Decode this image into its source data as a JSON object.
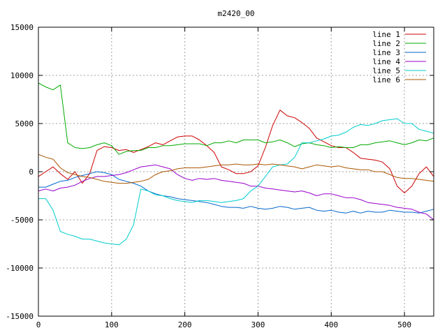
{
  "chart_data": {
    "type": "line",
    "title": "m2420_00",
    "xlabel": "",
    "ylabel": "",
    "xlim": [
      0,
      540
    ],
    "ylim": [
      -15000,
      15000
    ],
    "x_ticks": [
      0,
      100,
      200,
      300,
      400,
      500
    ],
    "y_ticks": [
      -15000,
      -10000,
      -5000,
      0,
      5000,
      10000,
      15000
    ],
    "grid": true,
    "legend_position": "top-right",
    "x": [
      0,
      10,
      20,
      30,
      40,
      50,
      60,
      70,
      80,
      90,
      100,
      110,
      120,
      130,
      140,
      150,
      160,
      170,
      180,
      190,
      200,
      210,
      220,
      230,
      240,
      250,
      260,
      270,
      280,
      290,
      300,
      310,
      320,
      330,
      340,
      350,
      360,
      370,
      380,
      390,
      400,
      410,
      420,
      430,
      440,
      450,
      460,
      470,
      480,
      490,
      500,
      510,
      520,
      530,
      540
    ],
    "series": [
      {
        "name": "line 1",
        "color": "#cc0000",
        "values": [
          -500,
          0,
          500,
          -200,
          -800,
          0,
          -1200,
          -200,
          2200,
          2600,
          2500,
          2200,
          2300,
          2000,
          2300,
          2600,
          3000,
          2800,
          3200,
          3600,
          3700,
          3700,
          3300,
          2700,
          2000,
          500,
          200,
          -200,
          -200,
          0,
          600,
          2500,
          4800,
          6400,
          5800,
          5600,
          5100,
          4500,
          3500,
          3100,
          2700,
          2500,
          2500,
          2000,
          1400,
          1300,
          1200,
          1000,
          300,
          -1500,
          -2200,
          -1500,
          -200,
          500,
          -500
        ]
      },
      {
        "name": "line 2",
        "color": "#00aa00",
        "values": [
          9200,
          8800,
          8500,
          9000,
          3000,
          2500,
          2400,
          2500,
          2800,
          3000,
          2700,
          1800,
          2100,
          2200,
          2200,
          2500,
          2500,
          2700,
          2700,
          2800,
          2900,
          2900,
          2900,
          2700,
          3000,
          3000,
          3200,
          3000,
          3300,
          3300,
          3300,
          3000,
          3100,
          3300,
          3000,
          2600,
          2900,
          3000,
          2800,
          2700,
          2500,
          2600,
          2500,
          2500,
          2800,
          2800,
          3000,
          3100,
          3200,
          3000,
          2800,
          3000,
          3300,
          3200,
          3500
        ]
      },
      {
        "name": "line 3",
        "color": "#0066cc",
        "values": [
          -1600,
          -1600,
          -1300,
          -1000,
          -900,
          -600,
          -400,
          -200,
          0,
          -100,
          -300,
          -800,
          -1000,
          -1200,
          -1500,
          -2000,
          -2300,
          -2500,
          -2600,
          -2800,
          -2900,
          -3000,
          -3100,
          -3200,
          -3400,
          -3600,
          -3700,
          -3700,
          -3800,
          -3600,
          -3800,
          -3900,
          -3800,
          -3600,
          -3700,
          -3900,
          -3800,
          -3700,
          -4000,
          -4100,
          -4000,
          -4200,
          -4300,
          -4100,
          -4300,
          -4100,
          -4200,
          -4200,
          -4000,
          -4100,
          -4200,
          -4200,
          -4300,
          -4100,
          -3900
        ]
      },
      {
        "name": "line 4",
        "color": "#9900cc",
        "values": [
          -2000,
          -1800,
          -2000,
          -1700,
          -1600,
          -1400,
          -1000,
          -700,
          -500,
          -500,
          -400,
          -300,
          -100,
          200,
          500,
          600,
          700,
          500,
          300,
          -300,
          -700,
          -900,
          -700,
          -800,
          -700,
          -900,
          -1000,
          -1100,
          -1200,
          -1500,
          -1500,
          -1700,
          -1800,
          -1900,
          -2000,
          -2100,
          -2000,
          -2200,
          -2500,
          -2300,
          -2300,
          -2500,
          -2700,
          -2700,
          -2900,
          -3200,
          -3300,
          -3400,
          -3500,
          -3700,
          -3800,
          -3900,
          -4200,
          -4400,
          -5000
        ]
      },
      {
        "name": "line 5",
        "color": "#00cccc",
        "values": [
          -2800,
          -2800,
          -4000,
          -6200,
          -6500,
          -6700,
          -7000,
          -7000,
          -7200,
          -7400,
          -7500,
          -7600,
          -7000,
          -5500,
          -1800,
          -2000,
          -2400,
          -2500,
          -2800,
          -3000,
          -3100,
          -3200,
          -3000,
          -3000,
          -3100,
          -3200,
          -3100,
          -3000,
          -2800,
          -2000,
          -1500,
          -500,
          500,
          700,
          800,
          1500,
          3000,
          3000,
          3200,
          3400,
          3700,
          3800,
          4100,
          4600,
          4900,
          4800,
          5000,
          5300,
          5400,
          5500,
          5000,
          5000,
          4400,
          4200,
          4000
        ]
      },
      {
        "name": "line 6",
        "color": "#aa5500",
        "values": [
          1800,
          1500,
          1300,
          400,
          -100,
          -300,
          -500,
          -600,
          -800,
          -1000,
          -1100,
          -1200,
          -1200,
          -1100,
          -1000,
          -800,
          -300,
          0,
          100,
          300,
          400,
          400,
          400,
          500,
          600,
          700,
          700,
          800,
          700,
          700,
          800,
          700,
          800,
          700,
          600,
          500,
          300,
          500,
          700,
          600,
          500,
          600,
          400,
          300,
          200,
          200,
          0,
          0,
          -300,
          -600,
          -700,
          -700,
          -800,
          -900,
          -1000
        ]
      }
    ]
  }
}
